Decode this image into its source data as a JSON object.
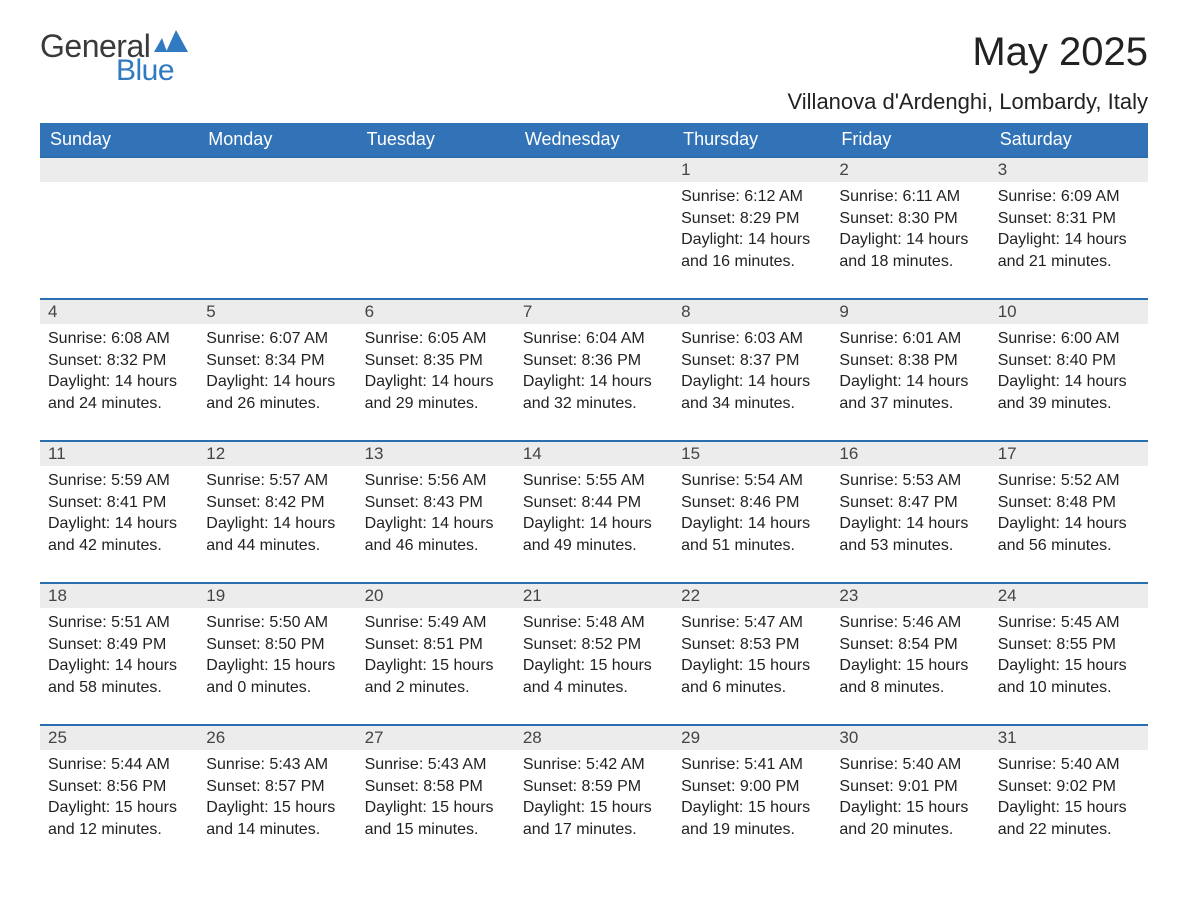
{
  "logo": {
    "text1": "General",
    "text2": "Blue",
    "flag_color": "#2f7ac0"
  },
  "title": "May 2025",
  "location": "Villanova d'Ardenghi, Lombardy, Italy",
  "colors": {
    "header_bg": "#3173b6",
    "header_text": "#ffffff",
    "daynum_bg": "#ececec",
    "daynum_border": "#2a6eb0",
    "body_text": "#222222",
    "background": "#ffffff"
  },
  "weekdays": [
    "Sunday",
    "Monday",
    "Tuesday",
    "Wednesday",
    "Thursday",
    "Friday",
    "Saturday"
  ],
  "weeks": [
    [
      null,
      null,
      null,
      null,
      {
        "n": "1",
        "sunrise": "6:12 AM",
        "sunset": "8:29 PM",
        "daylight": "14 hours and 16 minutes."
      },
      {
        "n": "2",
        "sunrise": "6:11 AM",
        "sunset": "8:30 PM",
        "daylight": "14 hours and 18 minutes."
      },
      {
        "n": "3",
        "sunrise": "6:09 AM",
        "sunset": "8:31 PM",
        "daylight": "14 hours and 21 minutes."
      }
    ],
    [
      {
        "n": "4",
        "sunrise": "6:08 AM",
        "sunset": "8:32 PM",
        "daylight": "14 hours and 24 minutes."
      },
      {
        "n": "5",
        "sunrise": "6:07 AM",
        "sunset": "8:34 PM",
        "daylight": "14 hours and 26 minutes."
      },
      {
        "n": "6",
        "sunrise": "6:05 AM",
        "sunset": "8:35 PM",
        "daylight": "14 hours and 29 minutes."
      },
      {
        "n": "7",
        "sunrise": "6:04 AM",
        "sunset": "8:36 PM",
        "daylight": "14 hours and 32 minutes."
      },
      {
        "n": "8",
        "sunrise": "6:03 AM",
        "sunset": "8:37 PM",
        "daylight": "14 hours and 34 minutes."
      },
      {
        "n": "9",
        "sunrise": "6:01 AM",
        "sunset": "8:38 PM",
        "daylight": "14 hours and 37 minutes."
      },
      {
        "n": "10",
        "sunrise": "6:00 AM",
        "sunset": "8:40 PM",
        "daylight": "14 hours and 39 minutes."
      }
    ],
    [
      {
        "n": "11",
        "sunrise": "5:59 AM",
        "sunset": "8:41 PM",
        "daylight": "14 hours and 42 minutes."
      },
      {
        "n": "12",
        "sunrise": "5:57 AM",
        "sunset": "8:42 PM",
        "daylight": "14 hours and 44 minutes."
      },
      {
        "n": "13",
        "sunrise": "5:56 AM",
        "sunset": "8:43 PM",
        "daylight": "14 hours and 46 minutes."
      },
      {
        "n": "14",
        "sunrise": "5:55 AM",
        "sunset": "8:44 PM",
        "daylight": "14 hours and 49 minutes."
      },
      {
        "n": "15",
        "sunrise": "5:54 AM",
        "sunset": "8:46 PM",
        "daylight": "14 hours and 51 minutes."
      },
      {
        "n": "16",
        "sunrise": "5:53 AM",
        "sunset": "8:47 PM",
        "daylight": "14 hours and 53 minutes."
      },
      {
        "n": "17",
        "sunrise": "5:52 AM",
        "sunset": "8:48 PM",
        "daylight": "14 hours and 56 minutes."
      }
    ],
    [
      {
        "n": "18",
        "sunrise": "5:51 AM",
        "sunset": "8:49 PM",
        "daylight": "14 hours and 58 minutes."
      },
      {
        "n": "19",
        "sunrise": "5:50 AM",
        "sunset": "8:50 PM",
        "daylight": "15 hours and 0 minutes."
      },
      {
        "n": "20",
        "sunrise": "5:49 AM",
        "sunset": "8:51 PM",
        "daylight": "15 hours and 2 minutes."
      },
      {
        "n": "21",
        "sunrise": "5:48 AM",
        "sunset": "8:52 PM",
        "daylight": "15 hours and 4 minutes."
      },
      {
        "n": "22",
        "sunrise": "5:47 AM",
        "sunset": "8:53 PM",
        "daylight": "15 hours and 6 minutes."
      },
      {
        "n": "23",
        "sunrise": "5:46 AM",
        "sunset": "8:54 PM",
        "daylight": "15 hours and 8 minutes."
      },
      {
        "n": "24",
        "sunrise": "5:45 AM",
        "sunset": "8:55 PM",
        "daylight": "15 hours and 10 minutes."
      }
    ],
    [
      {
        "n": "25",
        "sunrise": "5:44 AM",
        "sunset": "8:56 PM",
        "daylight": "15 hours and 12 minutes."
      },
      {
        "n": "26",
        "sunrise": "5:43 AM",
        "sunset": "8:57 PM",
        "daylight": "15 hours and 14 minutes."
      },
      {
        "n": "27",
        "sunrise": "5:43 AM",
        "sunset": "8:58 PM",
        "daylight": "15 hours and 15 minutes."
      },
      {
        "n": "28",
        "sunrise": "5:42 AM",
        "sunset": "8:59 PM",
        "daylight": "15 hours and 17 minutes."
      },
      {
        "n": "29",
        "sunrise": "5:41 AM",
        "sunset": "9:00 PM",
        "daylight": "15 hours and 19 minutes."
      },
      {
        "n": "30",
        "sunrise": "5:40 AM",
        "sunset": "9:01 PM",
        "daylight": "15 hours and 20 minutes."
      },
      {
        "n": "31",
        "sunrise": "5:40 AM",
        "sunset": "9:02 PM",
        "daylight": "15 hours and 22 minutes."
      }
    ]
  ],
  "labels": {
    "sunrise": "Sunrise:",
    "sunset": "Sunset:",
    "daylight": "Daylight:"
  }
}
